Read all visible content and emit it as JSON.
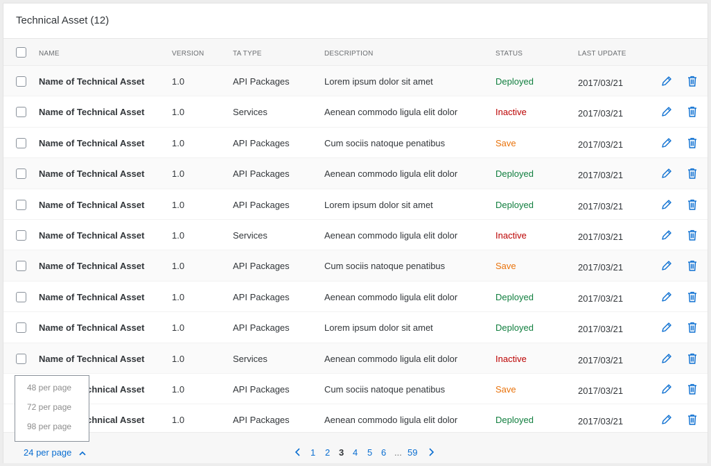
{
  "panel": {
    "title": "Technical Asset (12)"
  },
  "table": {
    "columns": {
      "name": "NAME",
      "version": "VERSION",
      "type": "TA TYPE",
      "description": "DESCRIPTION",
      "status": "STATUS",
      "last_update": "LAST UPDATE"
    },
    "rows": [
      {
        "name": "Name of Technical Asset",
        "version": "1.0",
        "type": "API Packages",
        "description": "Lorem ipsum dolor sit amet",
        "status": "Deployed",
        "last_update": "2017/03/21"
      },
      {
        "name": "Name of Technical Asset",
        "version": "1.0",
        "type": "Services",
        "description": "Aenean commodo ligula elit dolor",
        "status": "Inactive",
        "last_update": "2017/03/21"
      },
      {
        "name": "Name of Technical Asset",
        "version": "1.0",
        "type": "API Packages",
        "description": "Cum sociis natoque penatibus",
        "status": "Save",
        "last_update": "2017/03/21"
      },
      {
        "name": "Name of Technical Asset",
        "version": "1.0",
        "type": "API Packages",
        "description": "Aenean commodo ligula elit dolor",
        "status": "Deployed",
        "last_update": "2017/03/21"
      },
      {
        "name": "Name of Technical Asset",
        "version": "1.0",
        "type": "API Packages",
        "description": "Lorem ipsum dolor sit amet",
        "status": "Deployed",
        "last_update": "2017/03/21"
      },
      {
        "name": "Name of Technical Asset",
        "version": "1.0",
        "type": "Services",
        "description": "Aenean commodo ligula elit dolor",
        "status": "Inactive",
        "last_update": "2017/03/21"
      },
      {
        "name": "Name of Technical Asset",
        "version": "1.0",
        "type": "API Packages",
        "description": "Cum sociis natoque penatibus",
        "status": "Save",
        "last_update": "2017/03/21"
      },
      {
        "name": "Name of Technical Asset",
        "version": "1.0",
        "type": "API Packages",
        "description": "Aenean commodo ligula elit dolor",
        "status": "Deployed",
        "last_update": "2017/03/21"
      },
      {
        "name": "Name of Technical Asset",
        "version": "1.0",
        "type": "API Packages",
        "description": "Lorem ipsum dolor sit amet",
        "status": "Deployed",
        "last_update": "2017/03/21"
      },
      {
        "name": "Name of Technical Asset",
        "version": "1.0",
        "type": "Services",
        "description": "Aenean commodo ligula elit dolor",
        "status": "Inactive",
        "last_update": "2017/03/21"
      },
      {
        "name": "Name of Technical Asset",
        "version": "1.0",
        "type": "API Packages",
        "description": "Cum sociis natoque penatibus",
        "status": "Save",
        "last_update": "2017/03/21"
      },
      {
        "name": "Name of Technical Asset",
        "version": "1.0",
        "type": "API Packages",
        "description": "Aenean commodo ligula elit dolor",
        "status": "Deployed",
        "last_update": "2017/03/21"
      }
    ],
    "row_icons": {
      "edit": "pencil-icon",
      "delete": "trash-icon"
    }
  },
  "footer": {
    "per_page": "24 per page",
    "per_page_options": [
      "48 per page",
      "72 per page",
      "98 per page"
    ],
    "pages": [
      "1",
      "2",
      "3",
      "4",
      "5",
      "6",
      "...",
      "59"
    ],
    "current_page": "3"
  },
  "colors": {
    "accent": "#0a6ed1",
    "deployed": "#107e3e",
    "inactive": "#bb0000",
    "save": "#e9730c"
  }
}
